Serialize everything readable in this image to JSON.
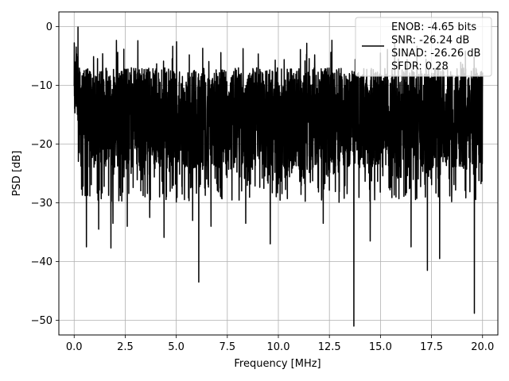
{
  "chart_data": {
    "type": "line",
    "xlabel": "Frequency [MHz]",
    "ylabel": "PSD [dB]",
    "xlim": [
      -0.75,
      20.75
    ],
    "ylim": [
      -52.5,
      2.5
    ],
    "xticks": [
      0.0,
      2.5,
      5.0,
      7.5,
      10.0,
      12.5,
      15.0,
      17.5,
      20.0
    ],
    "xtick_labels": [
      "0.0",
      "2.5",
      "5.0",
      "7.5",
      "10.0",
      "12.5",
      "15.0",
      "17.5",
      "20.0"
    ],
    "yticks": [
      0,
      -10,
      -20,
      -30,
      -40,
      -50
    ],
    "ytick_labels": [
      "0",
      "−10",
      "−20",
      "−30",
      "−40",
      "−50"
    ],
    "grid": true,
    "legend_position": "top-right",
    "legend": {
      "lines": [
        "ENOB: -4.65 bits",
        "SNR: -26.24 dB",
        "SINAD: -26.26 dB",
        "SFDR: 0.28"
      ]
    },
    "series": [
      {
        "color": "#000000",
        "x_range": [
          0.0,
          20.0
        ],
        "band_upper": -7,
        "band_lower": -24,
        "peak_max": 0,
        "dips": [
          {
            "x": 0.6,
            "y": -37.5
          },
          {
            "x": 1.2,
            "y": -34.5
          },
          {
            "x": 1.8,
            "y": -37.7
          },
          {
            "x": 1.9,
            "y": -33.5
          },
          {
            "x": 2.6,
            "y": -34.0
          },
          {
            "x": 3.7,
            "y": -32.5
          },
          {
            "x": 4.4,
            "y": -35.9
          },
          {
            "x": 5.8,
            "y": -33.0
          },
          {
            "x": 6.1,
            "y": -43.5
          },
          {
            "x": 6.7,
            "y": -34.0
          },
          {
            "x": 8.4,
            "y": -33.5
          },
          {
            "x": 9.6,
            "y": -37.0
          },
          {
            "x": 12.2,
            "y": -33.5
          },
          {
            "x": 13.7,
            "y": -51.0
          },
          {
            "x": 14.5,
            "y": -36.5
          },
          {
            "x": 16.5,
            "y": -37.5
          },
          {
            "x": 17.3,
            "y": -41.5
          },
          {
            "x": 17.9,
            "y": -39.5
          },
          {
            "x": 19.6,
            "y": -48.8
          }
        ]
      }
    ]
  }
}
